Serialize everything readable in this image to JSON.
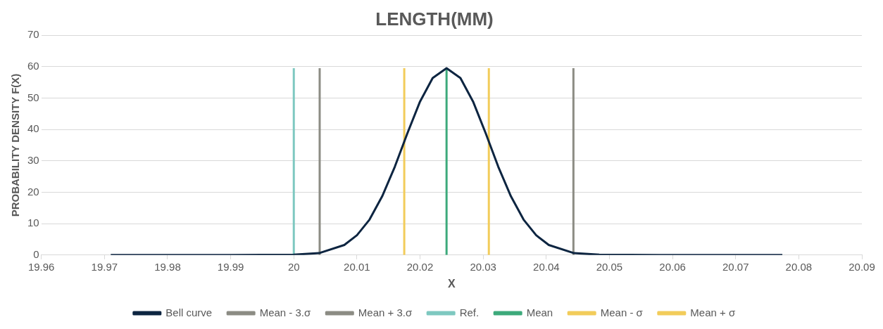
{
  "chart_data": {
    "type": "line",
    "title": "LENGTH(MM)",
    "xlabel": "X",
    "ylabel": "PROBABILITY DENSITY F(X)",
    "xlim": [
      19.96,
      20.09
    ],
    "xticks": [
      19.96,
      19.97,
      19.98,
      19.99,
      20,
      20.01,
      20.02,
      20.03,
      20.04,
      20.05,
      20.06,
      20.07,
      20.08,
      20.09
    ],
    "ylim": [
      0,
      70
    ],
    "yticks": [
      0,
      10,
      20,
      30,
      40,
      50,
      60,
      70
    ],
    "grid": "y",
    "legend": "bottom",
    "marker": "none",
    "line_style": "solid",
    "series": [
      {
        "name": "Bell curve",
        "color": "#0d2541",
        "x": [
          19.971,
          19.99,
          20,
          20.004,
          20.008,
          20.01,
          20.012,
          20.014,
          20.016,
          20.018,
          20.02,
          20.022,
          20.0242,
          20.0264,
          20.0284,
          20.0304,
          20.0324,
          20.0344,
          20.0364,
          20.0384,
          20.0404,
          20.0444,
          20.0484,
          20.058,
          20.0774
        ],
        "values": [
          0,
          0,
          0.1,
          0.6,
          3.2,
          6.3,
          11.3,
          18.7,
          28.1,
          38.8,
          48.9,
          56.4,
          59.5,
          56.4,
          48.9,
          38.8,
          28.1,
          18.7,
          11.3,
          6.3,
          3.2,
          0.6,
          0.1,
          0,
          0
        ]
      },
      {
        "name": "Mean - 3.σ",
        "color": "#8c8c84",
        "x": [
          20.0041,
          20.0041
        ],
        "values": [
          0,
          59.5
        ]
      },
      {
        "name": "Mean + 3.σ",
        "color": "#8c8c84",
        "x": [
          20.0443,
          20.0443
        ],
        "values": [
          0,
          59.5
        ]
      },
      {
        "name": "Ref.",
        "color": "#7ec8c0",
        "x": [
          20,
          20
        ],
        "values": [
          0,
          59.5
        ]
      },
      {
        "name": "Mean",
        "color": "#3daa7b",
        "x": [
          20.0242,
          20.0242
        ],
        "values": [
          0,
          59.5
        ]
      },
      {
        "name": "Mean - σ",
        "color": "#f2cc5a",
        "x": [
          20.0175,
          20.0175
        ],
        "values": [
          0,
          59.5
        ]
      },
      {
        "name": "Mean + σ",
        "color": "#f2cc5a",
        "x": [
          20.0309,
          20.0309
        ],
        "values": [
          0,
          59.5
        ]
      }
    ]
  }
}
